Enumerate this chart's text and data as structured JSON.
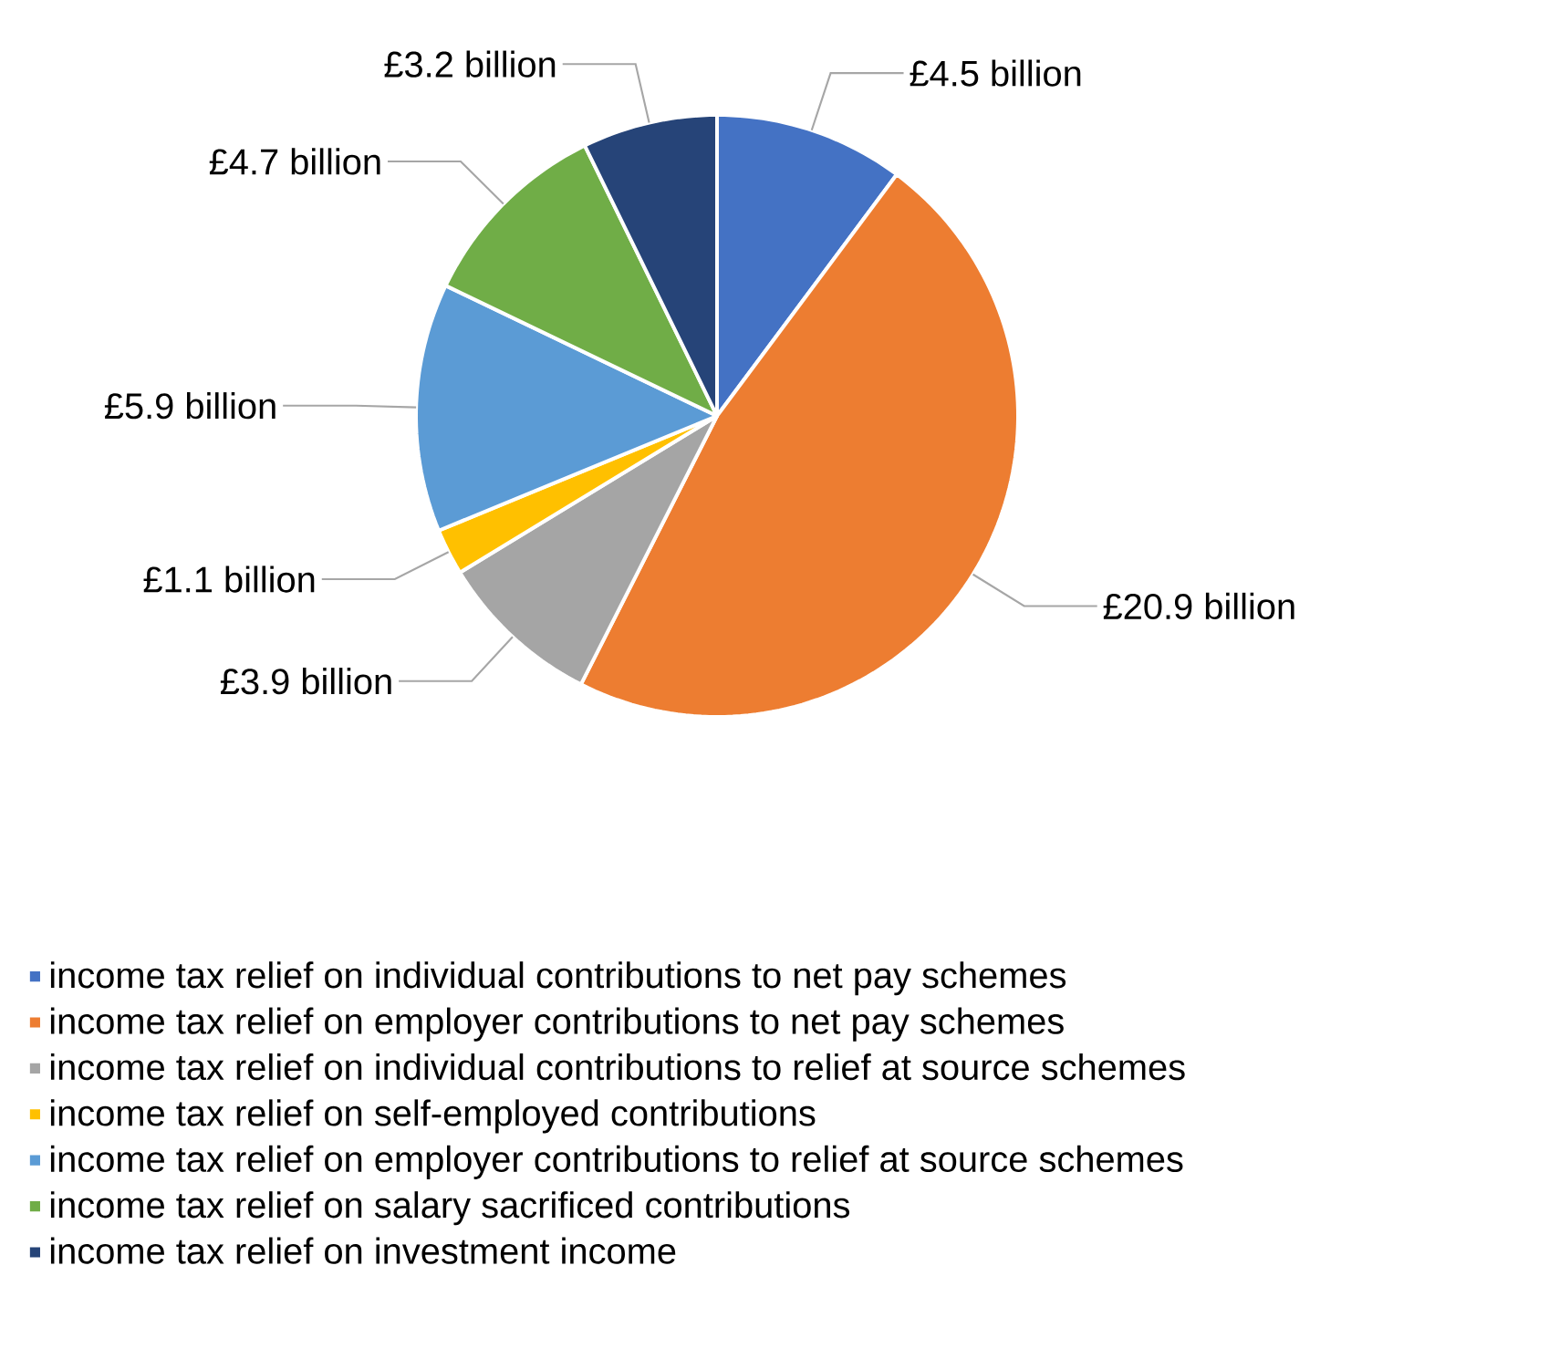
{
  "chart_data": {
    "type": "pie",
    "categories": [
      "income tax relief on individual contributions to net pay schemes",
      "income tax relief on employer contributions to net pay schemes",
      "income tax relief on individual contributions to relief at source schemes",
      "income tax relief on self-employed contributions",
      "income tax relief on employer contributions to relief at source schemes",
      "income tax relief on salary sacrificed contributions",
      "income tax relief on investment income"
    ],
    "values": [
      4.5,
      20.9,
      3.9,
      1.1,
      5.9,
      4.7,
      3.2
    ],
    "value_labels": [
      "£4.5 billion",
      "£20.9 billion",
      "£3.9 billion",
      "£1.1 billion",
      "£5.9 billion",
      "£4.7 billion",
      "£3.2 billion"
    ],
    "colors": [
      "#4472c4",
      "#ed7d31",
      "#a5a5a5",
      "#ffc000",
      "#5b9bd5",
      "#70ad47",
      "#264478"
    ],
    "legend": "bottom"
  }
}
